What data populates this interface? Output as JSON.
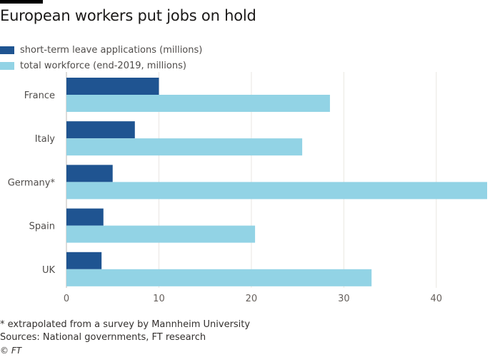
{
  "title": "European workers put jobs on hold",
  "legend": [
    {
      "label": "short-term leave applications (millions)",
      "color": "#1f5491"
    },
    {
      "label": "total workforce (end-2019, millions)",
      "color": "#92d3e5"
    }
  ],
  "footer": {
    "note": "* extrapolated from a survey by Mannheim University",
    "sources": "Sources: National governments, FT research",
    "credit": "© FT"
  },
  "chart_data": {
    "type": "bar",
    "orientation": "horizontal",
    "categories": [
      "France",
      "Italy",
      "Germany*",
      "Spain",
      "UK"
    ],
    "series": [
      {
        "name": "short-term leave applications (millions)",
        "color": "#1f5491",
        "values": [
          10.0,
          7.4,
          5.0,
          4.0,
          3.8
        ]
      },
      {
        "name": "total workforce (end-2019, millions)",
        "color": "#92d3e5",
        "values": [
          28.5,
          25.5,
          45.5,
          20.4,
          33.0
        ]
      }
    ],
    "xlim": [
      0,
      45.5
    ],
    "xticks": [
      0,
      10,
      20,
      30,
      40
    ],
    "grid": true,
    "legend_position": "top-left"
  }
}
